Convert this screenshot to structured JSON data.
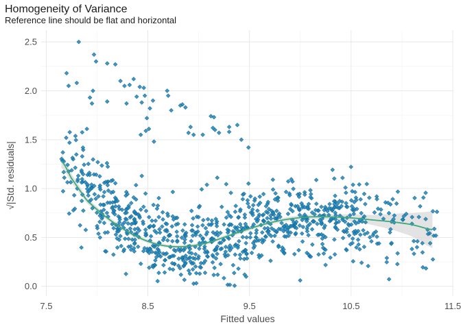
{
  "chart_data": {
    "type": "scatter",
    "title": "Homogeneity of Variance",
    "subtitle": "Reference line should be flat and horizontal",
    "xlabel": "Fitted values",
    "ylabel": "√|Std. residuals|",
    "xlim": [
      7.45,
      11.5
    ],
    "ylim": [
      -0.1,
      2.62
    ],
    "x_ticks": [
      7.5,
      8.5,
      9.5,
      10.5,
      11.5
    ],
    "x_tick_labels": [
      "7.5",
      "8.5",
      "9.5",
      "10.5",
      "11.5"
    ],
    "y_ticks": [
      0.0,
      0.5,
      1.0,
      1.5,
      2.0,
      2.5
    ],
    "y_tick_labels": [
      "0.0",
      "0.5",
      "1.0",
      "1.5",
      "2.0",
      "2.5"
    ],
    "grid": true,
    "colors": {
      "points": "#1b82b8",
      "point_edge": "#0d5a85",
      "smooth": "#3aaa7a",
      "ribbon": "#d9d9d9"
    },
    "high_residual_points": [
      [
        7.82,
        2.5
      ],
      [
        7.97,
        2.37
      ],
      [
        7.7,
        2.18
      ],
      [
        7.72,
        2.05
      ],
      [
        7.8,
        2.08
      ],
      [
        8.1,
        2.28
      ],
      [
        8.18,
        2.27
      ],
      [
        7.99,
        2.3
      ],
      [
        7.96,
        2.0
      ],
      [
        8.23,
        2.1
      ],
      [
        8.27,
        2.05
      ],
      [
        8.32,
        2.06
      ],
      [
        8.36,
        2.12
      ],
      [
        8.42,
        2.04
      ],
      [
        8.46,
        2.03
      ],
      [
        8.39,
        1.94
      ],
      [
        8.44,
        1.88
      ],
      [
        8.47,
        1.95
      ],
      [
        8.49,
        1.72
      ],
      [
        8.48,
        1.59
      ],
      [
        8.51,
        1.61
      ],
      [
        8.43,
        1.55
      ],
      [
        8.56,
        1.48
      ],
      [
        7.93,
        1.93
      ],
      [
        7.95,
        1.87
      ],
      [
        7.9,
        1.61
      ],
      [
        8.1,
        1.89
      ],
      [
        8.29,
        1.87
      ],
      [
        8.52,
        1.82
      ],
      [
        8.55,
        1.9
      ],
      [
        8.69,
        2.0
      ],
      [
        8.7,
        1.95
      ],
      [
        8.84,
        1.86
      ],
      [
        8.87,
        1.83
      ],
      [
        8.9,
        1.57
      ],
      [
        8.95,
        1.55
      ],
      [
        8.82,
        1.85
      ],
      [
        9.04,
        1.55
      ],
      [
        9.12,
        1.74
      ],
      [
        9.15,
        1.73
      ],
      [
        9.16,
        1.6
      ],
      [
        9.2,
        1.57
      ],
      [
        9.14,
        1.62
      ],
      [
        9.3,
        1.63
      ],
      [
        9.3,
        1.58
      ],
      [
        9.38,
        1.65
      ],
      [
        9.42,
        1.5
      ],
      [
        9.49,
        1.42
      ],
      [
        8.73,
        1.8
      ],
      [
        8.92,
        1.63
      ]
    ],
    "point_count": 1000,
    "smooth_curve": [
      [
        7.65,
        1.28
      ],
      [
        7.75,
        1.1
      ],
      [
        7.9,
        0.88
      ],
      [
        8.1,
        0.7
      ],
      [
        8.3,
        0.56
      ],
      [
        8.5,
        0.46
      ],
      [
        8.7,
        0.41
      ],
      [
        8.9,
        0.41
      ],
      [
        9.1,
        0.45
      ],
      [
        9.3,
        0.52
      ],
      [
        9.5,
        0.59
      ],
      [
        9.7,
        0.65
      ],
      [
        9.9,
        0.69
      ],
      [
        10.1,
        0.71
      ],
      [
        10.3,
        0.71
      ],
      [
        10.5,
        0.7
      ],
      [
        10.7,
        0.68
      ],
      [
        10.9,
        0.66
      ],
      [
        11.1,
        0.63
      ],
      [
        11.3,
        0.58
      ]
    ],
    "ribbon_halfwidth": [
      0.07,
      0.045,
      0.03,
      0.025,
      0.02,
      0.018,
      0.017,
      0.017,
      0.018,
      0.018,
      0.02,
      0.02,
      0.022,
      0.024,
      0.028,
      0.035,
      0.05,
      0.08,
      0.12,
      0.19
    ]
  }
}
